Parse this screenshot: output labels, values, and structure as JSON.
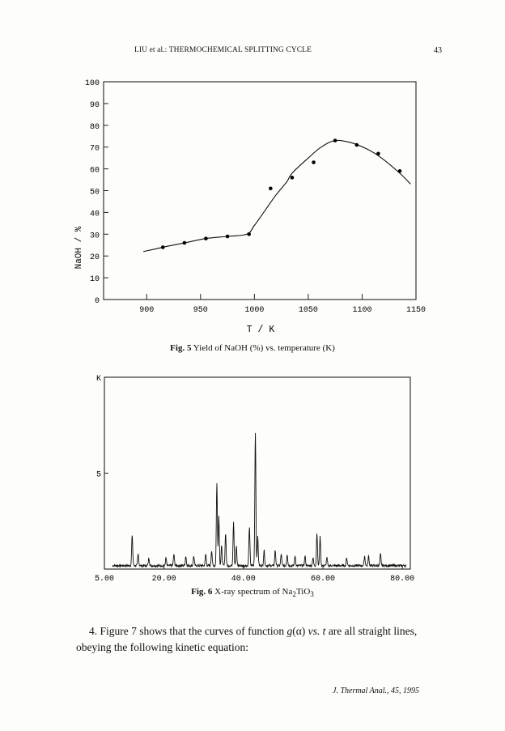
{
  "header": {
    "running_title": "LIU et al.: THERMOCHEMICAL SPLITTING CYCLE",
    "page_number": "43"
  },
  "figure5": {
    "caption_label": "Fig. 5",
    "caption_text": "Yield of NaOH (%) vs. temperature (K)",
    "xlabel": "T / K",
    "ylabel": "NaOH / %",
    "chart_data": {
      "type": "scatter",
      "xlim": [
        860,
        1150
      ],
      "ylim": [
        0,
        100
      ],
      "x_ticks": [
        900,
        950,
        1000,
        1050,
        1100,
        1150
      ],
      "y_ticks": [
        0,
        10,
        20,
        30,
        40,
        50,
        60,
        70,
        80,
        90,
        100
      ],
      "points": [
        {
          "x": 915,
          "y": 24
        },
        {
          "x": 935,
          "y": 26
        },
        {
          "x": 955,
          "y": 28
        },
        {
          "x": 975,
          "y": 29
        },
        {
          "x": 995,
          "y": 30
        },
        {
          "x": 1015,
          "y": 51
        },
        {
          "x": 1035,
          "y": 56
        },
        {
          "x": 1055,
          "y": 63
        },
        {
          "x": 1075,
          "y": 73
        },
        {
          "x": 1095,
          "y": 71
        },
        {
          "x": 1115,
          "y": 67
        },
        {
          "x": 1135,
          "y": 59
        }
      ],
      "curve": [
        {
          "x": 897,
          "y": 22
        },
        {
          "x": 915,
          "y": 24
        },
        {
          "x": 935,
          "y": 26
        },
        {
          "x": 955,
          "y": 28
        },
        {
          "x": 975,
          "y": 29
        },
        {
          "x": 993,
          "y": 30
        },
        {
          "x": 1000,
          "y": 34
        },
        {
          "x": 1010,
          "y": 41
        },
        {
          "x": 1020,
          "y": 48
        },
        {
          "x": 1030,
          "y": 54
        },
        {
          "x": 1035,
          "y": 58
        },
        {
          "x": 1050,
          "y": 65
        },
        {
          "x": 1062,
          "y": 70
        },
        {
          "x": 1075,
          "y": 73
        },
        {
          "x": 1090,
          "y": 72
        },
        {
          "x": 1105,
          "y": 69
        },
        {
          "x": 1118,
          "y": 65
        },
        {
          "x": 1135,
          "y": 58
        },
        {
          "x": 1145,
          "y": 53
        }
      ]
    }
  },
  "figure6": {
    "caption_label": "Fig. 6",
    "caption_text": "X-ray spectrum of Na",
    "caption_sub1": "2",
    "caption_mid": "TiO",
    "caption_sub2": "3",
    "chart_data": {
      "type": "line",
      "xlim": [
        5,
        82
      ],
      "ylim": [
        0,
        10
      ],
      "y_tick_labels": [
        "K",
        "5"
      ],
      "x_ticks": [
        5,
        20,
        40,
        60,
        80
      ],
      "x_tick_labels": [
        "5.00",
        "20.00",
        "40.00",
        "60.00",
        "80.00"
      ],
      "peaks": [
        {
          "x": 12.0,
          "y": 1.6
        },
        {
          "x": 13.5,
          "y": 0.6
        },
        {
          "x": 16.2,
          "y": 0.4
        },
        {
          "x": 20.5,
          "y": 0.4
        },
        {
          "x": 22.5,
          "y": 0.6
        },
        {
          "x": 25.5,
          "y": 0.5
        },
        {
          "x": 27.5,
          "y": 0.5
        },
        {
          "x": 30.5,
          "y": 0.6
        },
        {
          "x": 32.0,
          "y": 0.8
        },
        {
          "x": 33.3,
          "y": 4.3
        },
        {
          "x": 33.8,
          "y": 2.6
        },
        {
          "x": 34.5,
          "y": 1.0
        },
        {
          "x": 35.5,
          "y": 1.7
        },
        {
          "x": 37.5,
          "y": 2.3
        },
        {
          "x": 38.2,
          "y": 1.0
        },
        {
          "x": 41.5,
          "y": 2.0
        },
        {
          "x": 43.0,
          "y": 7.0
        },
        {
          "x": 43.6,
          "y": 1.5
        },
        {
          "x": 45.2,
          "y": 0.8
        },
        {
          "x": 48.0,
          "y": 0.8
        },
        {
          "x": 49.5,
          "y": 0.6
        },
        {
          "x": 51.0,
          "y": 0.6
        },
        {
          "x": 53.0,
          "y": 0.5
        },
        {
          "x": 55.5,
          "y": 0.5
        },
        {
          "x": 57.5,
          "y": 0.4
        },
        {
          "x": 58.5,
          "y": 1.7
        },
        {
          "x": 59.3,
          "y": 1.5
        },
        {
          "x": 61.0,
          "y": 0.4
        },
        {
          "x": 66.0,
          "y": 0.4
        },
        {
          "x": 70.5,
          "y": 0.5
        },
        {
          "x": 71.5,
          "y": 0.5
        },
        {
          "x": 74.5,
          "y": 0.6
        }
      ]
    }
  },
  "body": {
    "line1_a": "4. Figure 7 shows that the curves of function ",
    "line1_g": "g",
    "line1_alpha": "(α) ",
    "line1_vs": "vs.",
    "line1_t": " t",
    "line1_b": " are all straight lines,",
    "line2": "obeying the following kinetic equation:"
  },
  "footer": {
    "journal": "J. Thermal Anal., 45, 1995"
  }
}
